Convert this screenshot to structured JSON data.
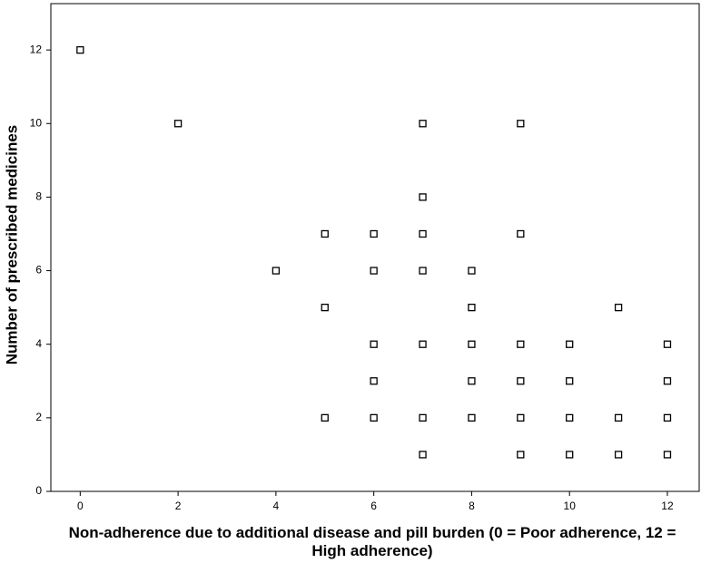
{
  "chart_data": {
    "type": "scatter",
    "x_label": "Non-adherence due to additional disease and pill burden (0 = Poor adherence, 12 = High adherence)",
    "y_label": "Number of prescribed medicines",
    "series": [
      {
        "color": "#000000",
        "x": [
          0,
          2,
          4,
          5,
          5,
          5,
          6,
          6,
          6,
          6,
          6,
          7,
          7,
          7,
          7,
          7,
          7,
          7,
          8,
          8,
          8,
          8,
          8,
          9,
          9,
          9,
          9,
          9,
          9,
          10,
          10,
          10,
          10,
          11,
          11,
          11,
          12,
          12,
          12,
          12
        ],
        "values": [
          12,
          10,
          6,
          7,
          5,
          2,
          7,
          6,
          4,
          3,
          2,
          10,
          8,
          7,
          6,
          4,
          2,
          1,
          6,
          5,
          4,
          3,
          2,
          10,
          7,
          4,
          3,
          2,
          1,
          4,
          3,
          2,
          1,
          5,
          2,
          1,
          4,
          3,
          2,
          1
        ]
      }
    ],
    "xlim": [
      -0.6,
      12.65
    ],
    "ylim": [
      0,
      13.26
    ],
    "xticks": [
      0,
      2,
      4,
      6,
      8,
      10,
      12
    ],
    "yticks": [
      0,
      2,
      4,
      6,
      8,
      10,
      12
    ]
  }
}
